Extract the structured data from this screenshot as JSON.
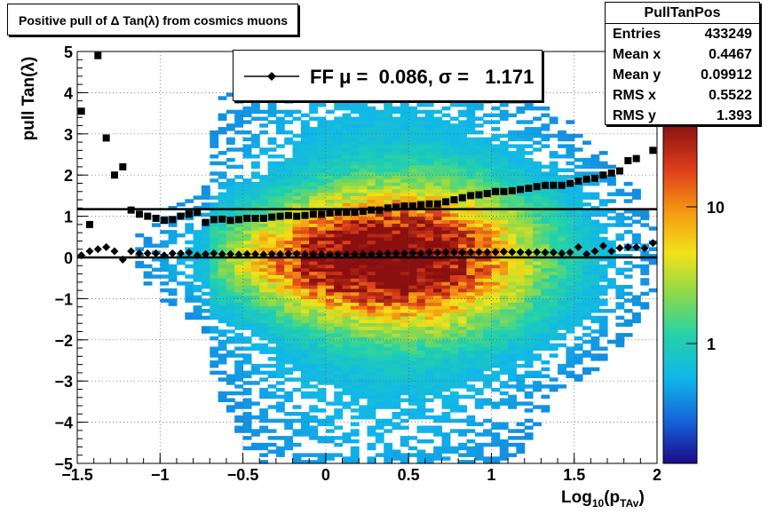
{
  "title": "Positive pull of Δ Tan(λ) from cosmics muons",
  "stats": {
    "name": "PullTanPos",
    "rows": [
      {
        "label": "Entries",
        "value": "433249"
      },
      {
        "label": "Mean x",
        "value": "0.4467"
      },
      {
        "label": "Mean y",
        "value": "0.09912"
      },
      {
        "label": "RMS x",
        "value": "0.5522"
      },
      {
        "label": "RMS y",
        "value": "1.393"
      }
    ]
  },
  "legend": {
    "text": "FF μ =  0.086, σ =   1.171"
  },
  "axes": {
    "xlabel_main": "Log",
    "xlabel_sub": "10",
    "xlabel_paren": "(p",
    "xlabel_sub2": "TAv",
    "xlabel_close": ")",
    "ylabel": "pull Tan(λ)"
  },
  "colors": {
    "mean_markers": "#000000",
    "hline": "#000000"
  },
  "chart_data": {
    "type": "heatmap",
    "title": "Positive pull of Δ Tan(λ) from cosmics muons",
    "xlabel": "Log10(pTAv)",
    "ylabel": "pull Tan(λ)",
    "xlim": [
      -1.5,
      2
    ],
    "ylim": [
      -5,
      5
    ],
    "xticks": [
      "−1.5",
      "−1",
      "−0.5",
      "0",
      "0.5",
      "1",
      "1.5",
      "2"
    ],
    "yticks": [
      "−5",
      "−4",
      "−3",
      "−2",
      "−1",
      "0",
      "1",
      "2",
      "3",
      "4",
      "5"
    ],
    "zscale": "log",
    "zticks": [
      "1",
      "10"
    ],
    "grid": true,
    "series": [
      {
        "name": "mean",
        "x": [
          -1.475,
          -1.425,
          -1.375,
          -1.325,
          -1.275,
          -1.225,
          -1.175,
          -1.125,
          -1.075,
          -1.025,
          -0.975,
          -0.925,
          -0.875,
          -0.825,
          -0.775,
          -0.725,
          -0.675,
          -0.625,
          -0.575,
          -0.525,
          -0.475,
          -0.425,
          -0.375,
          -0.325,
          -0.275,
          -0.225,
          -0.175,
          -0.125,
          -0.075,
          -0.025,
          0.025,
          0.075,
          0.125,
          0.175,
          0.225,
          0.275,
          0.325,
          0.375,
          0.425,
          0.475,
          0.525,
          0.575,
          0.625,
          0.675,
          0.725,
          0.775,
          0.825,
          0.875,
          0.925,
          0.975,
          1.025,
          1.075,
          1.125,
          1.175,
          1.225,
          1.275,
          1.325,
          1.375,
          1.425,
          1.475,
          1.525,
          1.575,
          1.625,
          1.675,
          1.725,
          1.775,
          1.825,
          1.875,
          1.925,
          1.975
        ],
        "y": [
          0.05,
          0.15,
          0.2,
          0.25,
          0.15,
          -0.05,
          0.15,
          0.1,
          0.1,
          0.1,
          0.05,
          0.1,
          0.1,
          0.12,
          0.05,
          0.08,
          0.1,
          0.08,
          0.08,
          0.07,
          0.08,
          0.08,
          0.07,
          0.08,
          0.08,
          0.09,
          0.09,
          0.08,
          0.08,
          0.08,
          0.07,
          0.08,
          0.07,
          0.08,
          0.08,
          0.08,
          0.09,
          0.1,
          0.1,
          0.1,
          0.11,
          0.1,
          0.12,
          0.12,
          0.13,
          0.12,
          0.12,
          0.13,
          0.13,
          0.13,
          0.13,
          0.14,
          0.13,
          0.13,
          0.12,
          0.13,
          0.12,
          0.12,
          0.1,
          0.12,
          0.25,
          0.08,
          0.15,
          0.28,
          0.15,
          0.23,
          0.25,
          0.25,
          0.22,
          0.35
        ]
      },
      {
        "name": "sigma",
        "x": [
          -1.475,
          -1.425,
          -1.375,
          -1.325,
          -1.275,
          -1.225,
          -1.175,
          -1.125,
          -1.075,
          -1.025,
          -0.975,
          -0.925,
          -0.875,
          -0.825,
          -0.775,
          -0.725,
          -0.675,
          -0.625,
          -0.575,
          -0.525,
          -0.475,
          -0.425,
          -0.375,
          -0.325,
          -0.275,
          -0.225,
          -0.175,
          -0.125,
          -0.075,
          -0.025,
          0.025,
          0.075,
          0.125,
          0.175,
          0.225,
          0.275,
          0.325,
          0.375,
          0.425,
          0.475,
          0.525,
          0.575,
          0.625,
          0.675,
          0.725,
          0.775,
          0.825,
          0.875,
          0.925,
          0.975,
          1.025,
          1.075,
          1.125,
          1.175,
          1.225,
          1.275,
          1.325,
          1.375,
          1.425,
          1.475,
          1.525,
          1.575,
          1.625,
          1.675,
          1.725,
          1.775,
          1.825,
          1.875,
          1.975
        ],
        "y": [
          3.55,
          0.8,
          4.9,
          2.9,
          2.0,
          2.2,
          1.15,
          1.05,
          1.0,
          0.95,
          0.9,
          0.92,
          1.0,
          1.05,
          1.1,
          0.85,
          0.92,
          0.93,
          0.9,
          0.92,
          0.95,
          0.95,
          0.95,
          0.98,
          1.0,
          1.02,
          1.0,
          1.02,
          1.05,
          1.05,
          1.08,
          1.1,
          1.1,
          1.1,
          1.12,
          1.15,
          1.15,
          1.2,
          1.22,
          1.25,
          1.25,
          1.28,
          1.3,
          1.3,
          1.35,
          1.4,
          1.45,
          1.5,
          1.52,
          1.55,
          1.6,
          1.6,
          1.62,
          1.65,
          1.68,
          1.72,
          1.75,
          1.75,
          1.75,
          1.8,
          1.85,
          1.9,
          1.92,
          2.0,
          2.05,
          2.1,
          2.35,
          2.4,
          2.6
        ]
      }
    ],
    "hlines": [
      0.0,
      1.171
    ],
    "legend_placement": "top"
  }
}
